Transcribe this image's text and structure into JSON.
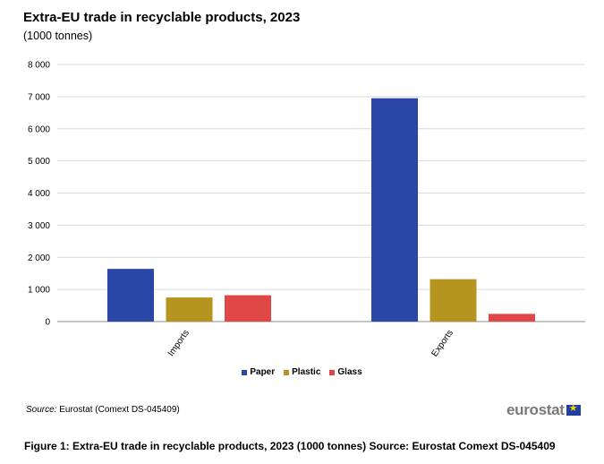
{
  "header": {
    "title": "Extra-EU trade in recyclable products, 2023",
    "subtitle": "(1000 tonnes)"
  },
  "footer": {
    "source_label": "Source:",
    "source_text": " Eurostat (Comext DS-045409)",
    "logo_text": "eurostat",
    "caption": "Figure 1: Extra-EU trade in recyclable products, 2023 (1000 tonnes) Source: Eurostat Comext DS-045409"
  },
  "colors": {
    "paper": "#2a46a7",
    "plastic": "#b5951f",
    "glass": "#e04848",
    "grid": "#d9d9d9",
    "axis": "#8c8c8c"
  },
  "chart_data": {
    "type": "bar",
    "categories": [
      "Imports",
      "Exports"
    ],
    "series": [
      {
        "name": "Paper",
        "values": [
          1640,
          6950
        ]
      },
      {
        "name": "Plastic",
        "values": [
          750,
          1320
        ]
      },
      {
        "name": "Glass",
        "values": [
          820,
          240
        ]
      }
    ],
    "ylim": [
      0,
      8000
    ],
    "yticks": [
      "0",
      "1 000",
      "2 000",
      "3 000",
      "4 000",
      "5 000",
      "6 000",
      "7 000",
      "8 000"
    ],
    "legend_position": "bottom",
    "grid": true
  }
}
